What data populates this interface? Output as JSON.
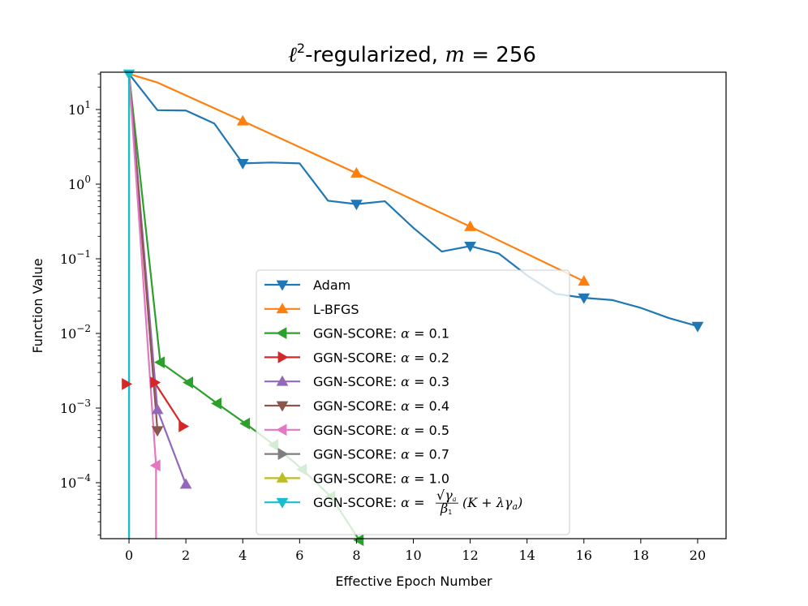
{
  "chart_data": {
    "type": "line",
    "title": "ℓ²-regularized, m = 256",
    "title_parts": {
      "ell": "ℓ",
      "sup": "2",
      "text": "-regularized, ",
      "var": "m",
      "eq": " = 256"
    },
    "xlabel": "Effective Epoch Number",
    "ylabel": "Function Value",
    "xlim": [
      -1,
      21
    ],
    "ylim_log10": [
      -4.75,
      1.5
    ],
    "yscale": "log",
    "x_ticks": [
      0,
      2,
      4,
      6,
      8,
      10,
      12,
      14,
      16,
      18,
      20
    ],
    "x_tick_labels": [
      "0",
      "2",
      "4",
      "6",
      "8",
      "10",
      "12",
      "14",
      "16",
      "18",
      "20"
    ],
    "y_ticks_log10": [
      1,
      0,
      -1,
      -2,
      -3,
      -4
    ],
    "y_tick_labels": [
      {
        "base": "10",
        "exp": "1"
      },
      {
        "base": "10",
        "exp": "0"
      },
      {
        "base": "10",
        "exp": "−1"
      },
      {
        "base": "10",
        "exp": "−2"
      },
      {
        "base": "10",
        "exp": "−3"
      },
      {
        "base": "10",
        "exp": "−4"
      }
    ],
    "legend_position": "center-right",
    "series": [
      {
        "name": "Adam",
        "label_text": "Adam",
        "color": "#1f77b4",
        "marker": "triangle-down",
        "x": [
          0,
          1,
          2,
          3,
          4,
          5,
          6,
          7,
          8,
          9,
          10,
          11,
          12,
          13,
          14,
          15,
          16,
          17,
          18,
          19,
          20
        ],
        "y": [
          30,
          9.8,
          9.7,
          6.5,
          1.9,
          1.95,
          1.9,
          0.6,
          0.54,
          0.59,
          0.26,
          0.125,
          0.148,
          0.118,
          0.06,
          0.034,
          0.03,
          0.028,
          0.022,
          0.016,
          0.0125
        ],
        "marker_x": [
          4,
          8,
          12,
          16,
          20
        ]
      },
      {
        "name": "L-BFGS",
        "label_text": "L-BFGS",
        "color": "#ff7f0e",
        "marker": "triangle-up",
        "x": [
          0,
          1,
          4,
          8,
          12,
          16
        ],
        "y": [
          30,
          23,
          7,
          1.4,
          0.27,
          0.05
        ],
        "marker_x": [
          4,
          8,
          12,
          16
        ]
      },
      {
        "name": "GGN-SCORE: α = 0.1",
        "label_text": "GGN-SCORE: ",
        "alpha": "0.1",
        "color": "#2ca02c",
        "marker": "triangle-left",
        "x": [
          0,
          1.1,
          2.1,
          3.1,
          4.1,
          5.1,
          6.1,
          7.1,
          8.1
        ],
        "y": [
          30,
          0.0041,
          0.0022,
          0.00115,
          0.00062,
          0.00032,
          0.00015,
          6.5e-05,
          1.7e-05
        ],
        "marker_x": [
          1.1,
          2.1,
          3.1,
          4.1,
          5.1,
          6.1,
          7.1,
          8.1
        ]
      },
      {
        "name": "GGN-SCORE: α = 0.2",
        "label_text": "GGN-SCORE: ",
        "alpha": "0.2",
        "color": "#d62728",
        "marker": "triangle-right",
        "x": [
          0,
          0.9,
          1.9
        ],
        "y": [
          30,
          0.0022,
          0.00057
        ],
        "marker_x": [
          -0.1,
          0.9,
          1.9
        ]
      },
      {
        "name": "GGN-SCORE: α = 0.3",
        "label_text": "GGN-SCORE: ",
        "alpha": "0.3",
        "color": "#9467bd",
        "marker": "triangle-up",
        "x": [
          0,
          1,
          2
        ],
        "y": [
          30,
          0.00095,
          9.5e-05
        ],
        "marker_x": [
          1,
          2
        ]
      },
      {
        "name": "GGN-SCORE: α = 0.4",
        "label_text": "GGN-SCORE: ",
        "alpha": "0.4",
        "color": "#8c564b",
        "marker": "triangle-down",
        "x": [
          0,
          1
        ],
        "y": [
          30,
          0.0005
        ],
        "marker_x": [
          1
        ]
      },
      {
        "name": "GGN-SCORE: α = 0.5",
        "label_text": "GGN-SCORE: ",
        "alpha": "0.5",
        "color": "#e377c2",
        "marker": "triangle-left",
        "x": [
          0,
          0.95,
          0.95
        ],
        "y": [
          30,
          0.00017,
          1.77e-05
        ],
        "marker_x": [
          0.95
        ]
      },
      {
        "name": "GGN-SCORE: α = 0.7",
        "label_text": "GGN-SCORE: ",
        "alpha": "0.7",
        "color": "#7f7f7f",
        "marker": "triangle-right",
        "x": [
          0,
          0
        ],
        "y": [
          30,
          1.77e-05
        ],
        "marker_x": []
      },
      {
        "name": "GGN-SCORE: α = 1.0",
        "label_text": "GGN-SCORE: ",
        "alpha": "1.0",
        "color": "#bcbd22",
        "marker": "triangle-up",
        "x": [
          0,
          0
        ],
        "y": [
          30,
          1.77e-05
        ],
        "marker_x": []
      },
      {
        "name": "GGN-SCORE: α = √γa/β1 (K + λγa)",
        "label_text": "GGN-SCORE: ",
        "alpha_formula": true,
        "formula": {
          "sqrt": "√",
          "gamma": "γ",
          "a": "a",
          "beta": "β",
          "one": "1",
          "rest_open": "(K + λγ",
          "rest_sub": "a",
          "rest_close": ")"
        },
        "color": "#17becf",
        "marker": "triangle-down",
        "x": [
          0,
          0
        ],
        "y": [
          30,
          1.77e-05
        ],
        "marker_x": [
          0
        ]
      }
    ]
  }
}
